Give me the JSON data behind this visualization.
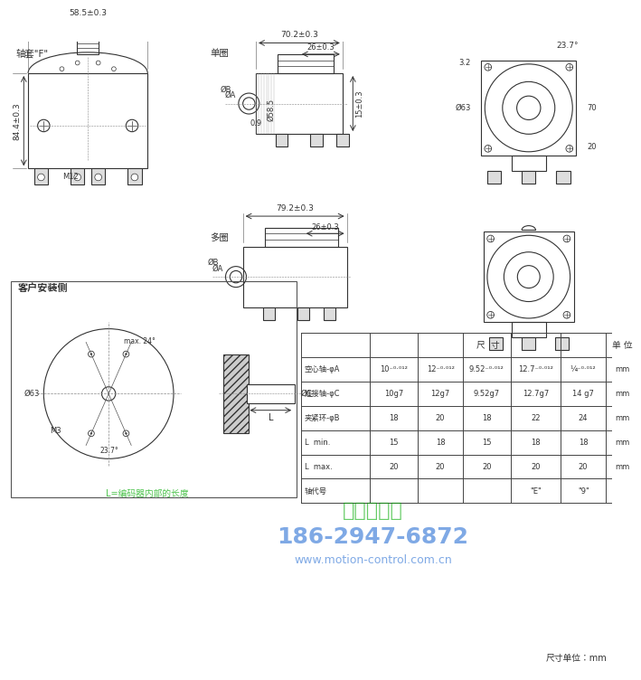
{
  "title": "轴套\"F\"",
  "bg_color": "#ffffff",
  "line_color": "#333333",
  "dim_color": "#333333",
  "table_header_bg": "#e8e8e8",
  "watermark_color_green": "#00aa00",
  "watermark_color_blue": "#0055cc",
  "section_labels": {
    "single": "单圈",
    "multi": "多圈",
    "customer_side": "客户安装侧"
  },
  "dim_labels": {
    "top_width": "58.5±0.3",
    "mid_width": "70.2±0.3",
    "mid_width2": "26±0.3",
    "side_height": "84.4±0.3",
    "side_width": "58.5",
    "side_dia": "Ø58.5",
    "bore_A": "ØB",
    "bore_A2": "ØA",
    "dim_09": "0.9",
    "dim_15": "15±0.3",
    "multi_width": "79.2±0.3",
    "multi_width2": "26±0.3",
    "right_top_angle": "23.7°",
    "right_dim1": "3.2",
    "right_dim2": "Ø63",
    "right_dim3": "70",
    "right_dim4": "20",
    "bottom_dia": "Ø63",
    "bottom_angle1": "max. 24°",
    "bottom_angle2": "23.7°",
    "bottom_m3": "M3",
    "m12": "M12"
  },
  "table": {
    "col_header": [
      "",
      "尺  寸",
      "",
      "",
      "",
      "",
      "单 位"
    ],
    "rows": [
      [
        "空心轴-φA",
        "10⁻⁰·⁰¹²",
        "12⁻⁰·⁰¹²",
        "9.52⁻⁰·⁰¹²",
        "12.7⁻⁰·⁰¹²",
        "¼⁻⁰·⁰¹²",
        "mm"
      ],
      [
        "连接轴-φC",
        "10g7",
        "12g7",
        "9.52g7",
        "12.7g7",
        "14 g7",
        "mm"
      ],
      [
        "夹紧环-φB",
        "18",
        "20",
        "18",
        "22",
        "24",
        "mm"
      ],
      [
        "L  min.",
        "15",
        "18",
        "15",
        "18",
        "18",
        "mm"
      ],
      [
        "L  max.",
        "20",
        "20",
        "20",
        "20",
        "20",
        "mm"
      ],
      [
        "轴代号",
        "",
        "",
        "",
        "\"E\"",
        "\"9\"",
        ""
      ]
    ]
  },
  "footer": "尺寸单位：mm",
  "watermark_text1": "西安德伍拓",
  "watermark_text2": "186-2947-6872",
  "watermark_text3": "www.motion-control.com.cn",
  "watermark_text4": "L=编码器内部的长度"
}
